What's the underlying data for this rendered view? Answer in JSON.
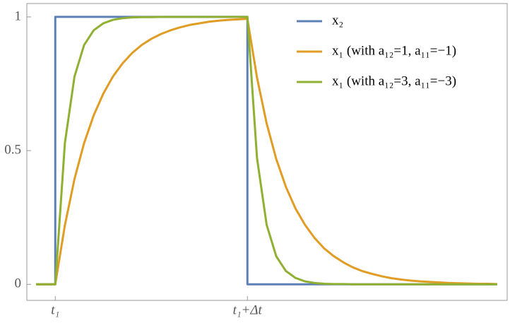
{
  "chart_data": {
    "type": "line",
    "x": [
      0.5,
      1,
      1.25,
      1.5,
      1.75,
      2,
      2.25,
      2.5,
      2.75,
      3,
      3.25,
      3.5,
      3.75,
      4,
      4.25,
      4.5,
      4.75,
      5,
      5.25,
      5.5,
      5.75,
      6,
      6.25,
      6.5,
      6.75,
      7,
      7.25,
      7.5,
      7.75,
      8,
      8.25,
      8.5,
      8.75,
      9,
      9.25,
      9.5,
      9.75,
      10,
      10.25,
      10.5,
      10.75,
      11,
      11.25,
      11.5,
      11.75,
      12,
      12.25,
      12.5
    ],
    "series": [
      {
        "name": "x₂",
        "color": "#5e81b5",
        "x": [
          0.5,
          1,
          1,
          6,
          6,
          12.5
        ],
        "values": [
          0,
          0,
          1,
          1,
          0,
          0
        ]
      },
      {
        "name": "x₁ (with a₁₂=1, a₁₁=−1)",
        "color": "#e19c24",
        "values": [
          0,
          0,
          0.221,
          0.394,
          0.528,
          0.632,
          0.713,
          0.777,
          0.826,
          0.865,
          0.895,
          0.918,
          0.936,
          0.95,
          0.961,
          0.97,
          0.976,
          0.982,
          0.986,
          0.989,
          0.991,
          0.993,
          0.773,
          0.602,
          0.469,
          0.365,
          0.284,
          0.222,
          0.173,
          0.134,
          0.105,
          0.082,
          0.063,
          0.049,
          0.039,
          0.03,
          0.023,
          0.018,
          0.014,
          0.011,
          0.009,
          0.007,
          0.005,
          0.004,
          0.003,
          0.002,
          0.002,
          0.001
        ]
      },
      {
        "name": "x₁ (with a₁₂=3, a₁₁=−3)",
        "color": "#8fb032",
        "values": [
          0,
          0,
          0.528,
          0.777,
          0.895,
          0.95,
          0.976,
          0.989,
          0.995,
          0.998,
          0.999,
          0.999,
          1,
          1,
          1,
          1,
          1,
          1,
          1,
          1,
          1,
          1,
          0.472,
          0.223,
          0.105,
          0.05,
          0.024,
          0.011,
          0.005,
          0.002,
          0.001,
          0.001,
          0,
          0,
          0,
          0,
          0,
          0,
          0,
          0,
          0,
          0,
          0,
          0,
          0,
          0,
          0,
          0
        ]
      }
    ],
    "xlim": [
      0.26,
      12.76
    ],
    "xticks": [
      {
        "value": 1,
        "label": "t₁"
      },
      {
        "value": 6,
        "label": "t₁+Δt"
      }
    ],
    "ylim": [
      -0.06,
      1.05
    ],
    "yticks": [
      0,
      0.5,
      1
    ]
  }
}
